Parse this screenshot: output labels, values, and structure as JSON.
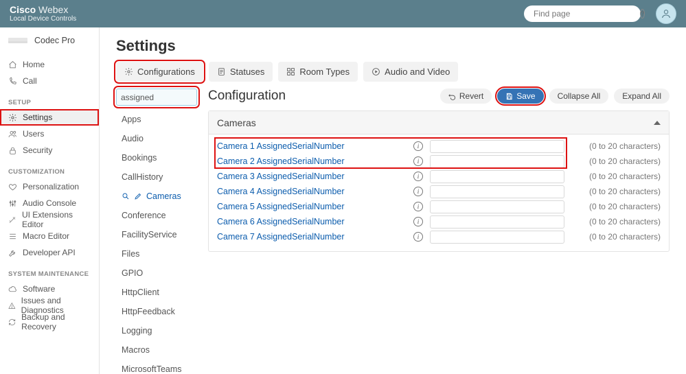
{
  "colors": {
    "header_bg": "#5b7f8c",
    "accent_link": "#0b5cad",
    "highlight": "#d11",
    "button_primary": "#3573b5"
  },
  "header": {
    "brand_bold": "Cisco",
    "brand_light": "Webex",
    "subtitle": "Local Device Controls",
    "search_placeholder": "Find page"
  },
  "device": {
    "name": "Codec Pro"
  },
  "sidebar": {
    "top": [
      {
        "label": "Home",
        "icon": "home"
      },
      {
        "label": "Call",
        "icon": "phone"
      }
    ],
    "sections": [
      {
        "title": "SETUP",
        "items": [
          {
            "label": "Settings",
            "icon": "gear",
            "active": true,
            "highlight": true
          },
          {
            "label": "Users",
            "icon": "users"
          },
          {
            "label": "Security",
            "icon": "lock"
          }
        ]
      },
      {
        "title": "CUSTOMIZATION",
        "items": [
          {
            "label": "Personalization",
            "icon": "heart"
          },
          {
            "label": "Audio Console",
            "icon": "sliders"
          },
          {
            "label": "UI Extensions Editor",
            "icon": "wand"
          },
          {
            "label": "Macro Editor",
            "icon": "lines"
          },
          {
            "label": "Developer API",
            "icon": "wrench"
          }
        ]
      },
      {
        "title": "SYSTEM MAINTENANCE",
        "items": [
          {
            "label": "Software",
            "icon": "cloud"
          },
          {
            "label": "Issues and Diagnostics",
            "icon": "alert"
          },
          {
            "label": "Backup and Recovery",
            "icon": "refresh"
          }
        ]
      }
    ]
  },
  "page": {
    "title": "Settings"
  },
  "tabs": [
    {
      "label": "Configurations",
      "icon": "gear",
      "highlight": true
    },
    {
      "label": "Statuses",
      "icon": "doc"
    },
    {
      "label": "Room Types",
      "icon": "grid"
    },
    {
      "label": "Audio and Video",
      "icon": "play"
    }
  ],
  "filter": {
    "value": "assigned",
    "highlight": true
  },
  "filter_items": [
    "Apps",
    "Audio",
    "Bookings",
    "CallHistory",
    "Cameras",
    "Conference",
    "FacilityService",
    "Files",
    "GPIO",
    "HttpClient",
    "HttpFeedback",
    "Logging",
    "Macros",
    "MicrosoftTeams"
  ],
  "filter_active_index": 4,
  "config": {
    "heading": "Configuration",
    "buttons": {
      "revert": "Revert",
      "save": "Save",
      "collapse": "Collapse All",
      "expand": "Expand All"
    },
    "save_highlight": true,
    "panel_title": "Cameras",
    "hint": "(0 to 20 characters)",
    "rows": [
      {
        "label": "Camera 1 AssignedSerialNumber",
        "value": ""
      },
      {
        "label": "Camera 2 AssignedSerialNumber",
        "value": ""
      },
      {
        "label": "Camera 3 AssignedSerialNumber",
        "value": ""
      },
      {
        "label": "Camera 4 AssignedSerialNumber",
        "value": ""
      },
      {
        "label": "Camera 5 AssignedSerialNumber",
        "value": ""
      },
      {
        "label": "Camera 6 AssignedSerialNumber",
        "value": ""
      },
      {
        "label": "Camera 7 AssignedSerialNumber",
        "value": ""
      }
    ],
    "row_highlight_count": 2
  }
}
